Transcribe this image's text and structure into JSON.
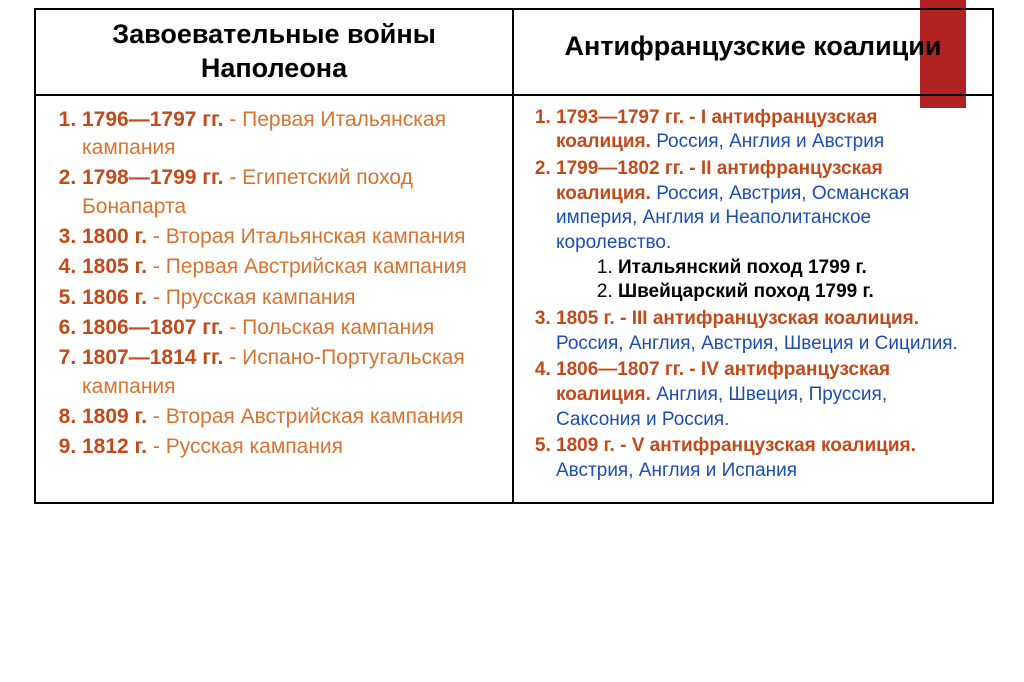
{
  "accent_color": "#b22222",
  "left": {
    "title": "Завоевательные войны Наполеона",
    "items": [
      {
        "date": "1796—1797 гг.",
        "text": " - Первая Итальянская кампания"
      },
      {
        "date": "1798—1799 гг.",
        "text": " - Египетский поход Бонапарта"
      },
      {
        "date": "1800 г.",
        "text": " - Вторая Итальянская кампания"
      },
      {
        "date": "1805 г.",
        "text": " - Первая Австрийская кампания"
      },
      {
        "date": "1806 г.",
        "text": " - Прусская кампания"
      },
      {
        "date": "1806—1807 гг.",
        "text": " - Польская кампания"
      },
      {
        "date": "1807—1814 гг.",
        "text": " - Испано-Португальская кампания"
      },
      {
        "date": "1809 г.",
        "text": " - Вторая Австрийская кампания"
      },
      {
        "date": "1812 г.",
        "text": " - Русская кампания"
      }
    ]
  },
  "right": {
    "title": "Антифранцузские коалиции",
    "items": [
      {
        "date": "1793—1797 гг.",
        "bold": " - I антифранцузская коалиция.",
        "text": " Россия, Англия и Австрия"
      },
      {
        "date": "1799—1802 гг.",
        "bold": " - II антифранцузская коалиция.",
        "text": " Россия, Австрия, Османская империя, Англия и Неаполитанское королевство.",
        "sub": [
          "Итальянский поход 1799 г.",
          "Швейцарский поход 1799 г."
        ]
      },
      {
        "date": "1805 г.",
        "bold": " - III антифранцузская коалиция.",
        "text": " Россия, Англия, Австрия, Швеция и Сицилия."
      },
      {
        "date": "1806—1807 гг.",
        "bold": " - IV антифранцузская коалиция.",
        "text": " Англия, Швеция, Пруссия, Саксония и Россия."
      },
      {
        "date": "1809 г.",
        "bold": " - V антифранцузская коалиция.",
        "text": " Австрия, Англия и Испания"
      }
    ]
  }
}
